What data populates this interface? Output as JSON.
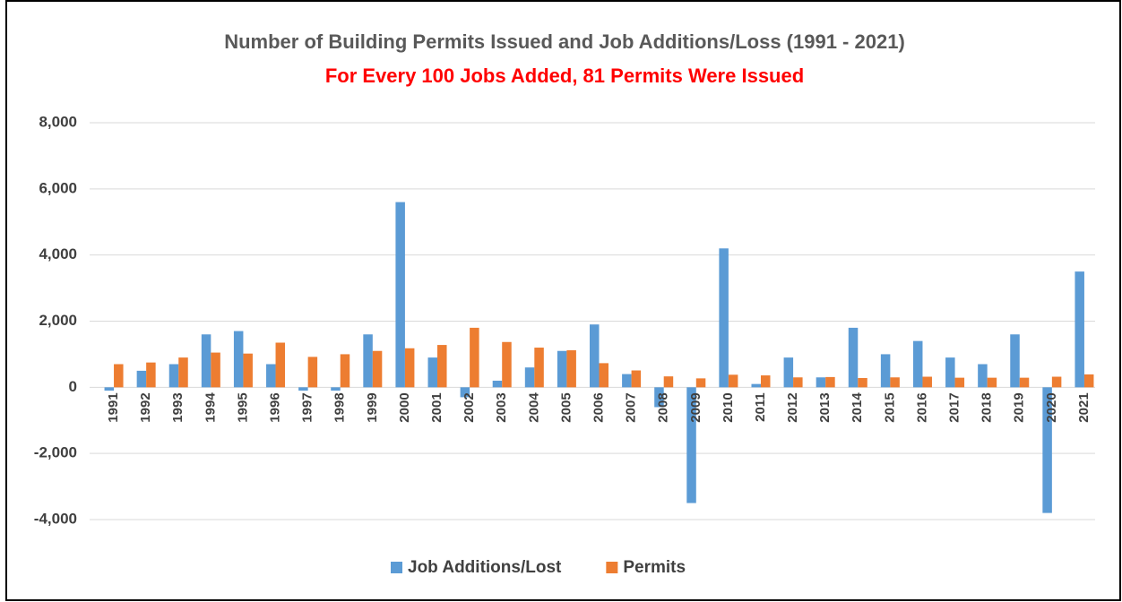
{
  "chart_data": {
    "type": "bar",
    "title": "Number of Building Permits Issued and Job Additions/Loss (1991 - 2021)",
    "subtitle": "For Every 100 Jobs Added, 81 Permits Were Issued",
    "categories": [
      "1991",
      "1992",
      "1993",
      "1994",
      "1995",
      "1996",
      "1997",
      "1998",
      "1999",
      "2000",
      "2001",
      "2002",
      "2003",
      "2004",
      "2005",
      "2006",
      "2007",
      "2008",
      "2009",
      "2010",
      "2011",
      "2012",
      "2013",
      "2014",
      "2015",
      "2016",
      "2017",
      "2018",
      "2019",
      "2020",
      "2021"
    ],
    "series": [
      {
        "name": "Job Additions/Lost",
        "color": "#5b9bd5",
        "values": [
          -100,
          500,
          700,
          1600,
          1700,
          700,
          -100,
          -100,
          1600,
          5600,
          900,
          -300,
          200,
          600,
          1100,
          1900,
          400,
          -600,
          -3500,
          4200,
          100,
          900,
          300,
          1800,
          1000,
          1400,
          900,
          700,
          1600,
          -3800,
          3500
        ]
      },
      {
        "name": "Permits",
        "color": "#ed7d31",
        "values": [
          700,
          750,
          900,
          1050,
          1020,
          1350,
          920,
          1000,
          1100,
          1180,
          1280,
          1800,
          1370,
          1200,
          1120,
          730,
          510,
          330,
          270,
          380,
          360,
          300,
          310,
          280,
          300,
          320,
          290,
          290,
          290,
          320,
          390
        ]
      }
    ],
    "ylim": [
      -4000,
      8000
    ],
    "yticks": [
      {
        "value": -4000,
        "label": "-4,000"
      },
      {
        "value": -2000,
        "label": "-2,000"
      },
      0,
      {
        "value": 2000,
        "label": "2,000"
      },
      {
        "value": 4000,
        "label": "4,000"
      },
      {
        "value": 6000,
        "label": "6,000"
      },
      {
        "value": 8000,
        "label": "8,000"
      }
    ],
    "grid": true,
    "legend": "bottom"
  }
}
